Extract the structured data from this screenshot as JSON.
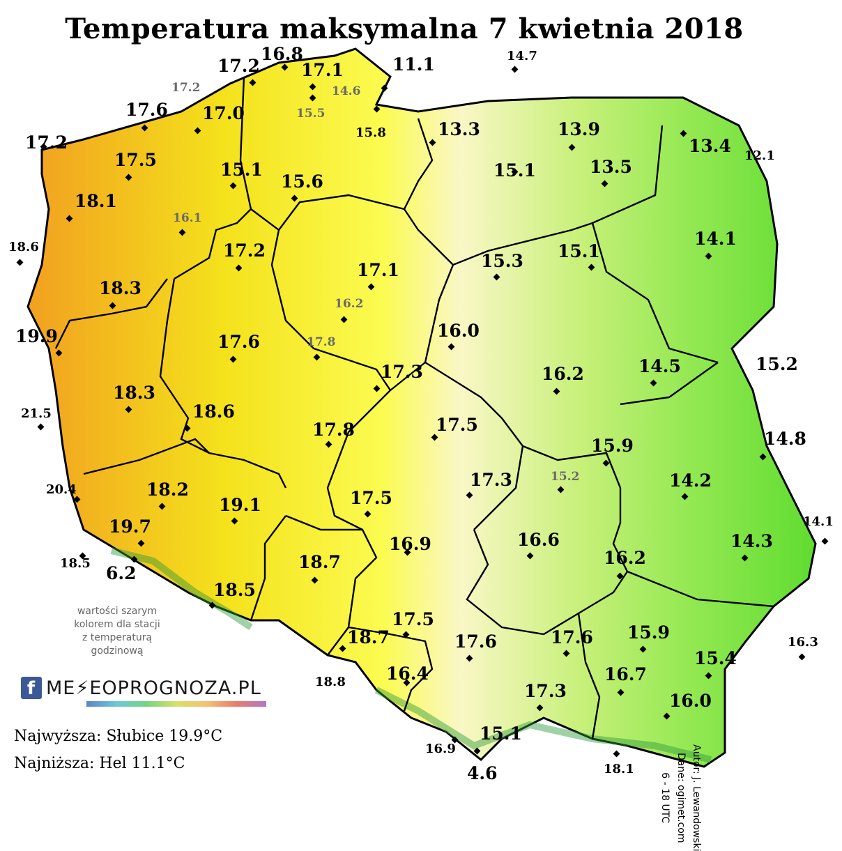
{
  "title": "Temperatura maksymalna 7 kwietnia 2018",
  "legend_note": [
    "wartości szarym",
    "kolorem dla stacji",
    "z temperaturą",
    "godzinową"
  ],
  "brand": {
    "fb": "f",
    "name": "METEOPROGNOZA.PL",
    "name_display_start": "ME",
    "name_display_end": "EOPROGNOZA.PL"
  },
  "extremes": {
    "highest": "Najwyższa: Słubice 19.9°C",
    "lowest": "Najniższa: Hel 11.1°C"
  },
  "credits": {
    "author": "Autor: J. Lewandowski",
    "data": "Dane: ogimet.com",
    "hours": "6 - 18 UTC"
  },
  "colors": {
    "warm": "#f0e01a",
    "yellow": "#ffff3a",
    "pale": "#f8f8c8",
    "green": "#9ee85a",
    "mountain": "#2f9a3a",
    "boundary": "#000000"
  },
  "stations": [
    {
      "value": "17.2",
      "style": "big"
    },
    {
      "value": "16.8",
      "style": "big"
    },
    {
      "value": "17.1",
      "style": "big"
    },
    {
      "value": "11.1",
      "style": "big"
    },
    {
      "value": "14.7",
      "style": "small"
    },
    {
      "value": "17.2",
      "style": "gray"
    },
    {
      "value": "17.0",
      "style": "big"
    },
    {
      "value": "14.6",
      "style": "gray"
    },
    {
      "value": "15.5",
      "style": "gray"
    },
    {
      "value": "15.8",
      "style": "small"
    },
    {
      "value": "17.6",
      "style": "big"
    },
    {
      "value": "13.3",
      "style": "big"
    },
    {
      "value": "13.9",
      "style": "big"
    },
    {
      "value": "13.4",
      "style": "big"
    },
    {
      "value": "17.2",
      "style": "big"
    },
    {
      "value": "17.5",
      "style": "big"
    },
    {
      "value": "15.1",
      "style": "big"
    },
    {
      "value": "15.1",
      "style": "big"
    },
    {
      "value": "13.5",
      "style": "big"
    },
    {
      "value": "12.1",
      "style": "small"
    },
    {
      "value": "15.6",
      "style": "big"
    },
    {
      "value": "18.1",
      "style": "big"
    },
    {
      "value": "16.1",
      "style": "gray"
    },
    {
      "value": "14.1",
      "style": "big"
    },
    {
      "value": "18.6",
      "style": "small"
    },
    {
      "value": "17.2",
      "style": "big"
    },
    {
      "value": "15.3",
      "style": "big"
    },
    {
      "value": "15.1",
      "style": "big"
    },
    {
      "value": "17.1",
      "style": "big"
    },
    {
      "value": "18.3",
      "style": "big"
    },
    {
      "value": "16.2",
      "style": "gray"
    },
    {
      "value": "16.0",
      "style": "big"
    },
    {
      "value": "19.9",
      "style": "big"
    },
    {
      "value": "17.6",
      "style": "big"
    },
    {
      "value": "17.8",
      "style": "gray"
    },
    {
      "value": "15.2",
      "style": "big"
    },
    {
      "value": "17.3",
      "style": "big"
    },
    {
      "value": "14.5",
      "style": "big"
    },
    {
      "value": "16.2",
      "style": "big"
    },
    {
      "value": "18.3",
      "style": "big"
    },
    {
      "value": "21.5",
      "style": "small"
    },
    {
      "value": "18.6",
      "style": "big"
    },
    {
      "value": "17.5",
      "style": "big"
    },
    {
      "value": "17.8",
      "style": "big"
    },
    {
      "value": "14.8",
      "style": "big"
    },
    {
      "value": "15.9",
      "style": "big"
    },
    {
      "value": "15.2",
      "style": "gray"
    },
    {
      "value": "17.3",
      "style": "big"
    },
    {
      "value": "14.2",
      "style": "big"
    },
    {
      "value": "20.4",
      "style": "small"
    },
    {
      "value": "18.2",
      "style": "big"
    },
    {
      "value": "19.1",
      "style": "big"
    },
    {
      "value": "17.5",
      "style": "big"
    },
    {
      "value": "19.7",
      "style": "big"
    },
    {
      "value": "16.9",
      "style": "big"
    },
    {
      "value": "16.6",
      "style": "big"
    },
    {
      "value": "14.1",
      "style": "small"
    },
    {
      "value": "14.3",
      "style": "big"
    },
    {
      "value": "18.5",
      "style": "small"
    },
    {
      "value": "6.2",
      "style": "big"
    },
    {
      "value": "18.7",
      "style": "big"
    },
    {
      "value": "16.2",
      "style": "big"
    },
    {
      "value": "18.5",
      "style": "big"
    },
    {
      "value": "17.5",
      "style": "big"
    },
    {
      "value": "15.9",
      "style": "big"
    },
    {
      "value": "18.7",
      "style": "big"
    },
    {
      "value": "17.6",
      "style": "big"
    },
    {
      "value": "17.6",
      "style": "big"
    },
    {
      "value": "16.3",
      "style": "small"
    },
    {
      "value": "15.4",
      "style": "big"
    },
    {
      "value": "16.4",
      "style": "big"
    },
    {
      "value": "18.8",
      "style": "small"
    },
    {
      "value": "16.7",
      "style": "big"
    },
    {
      "value": "17.3",
      "style": "big"
    },
    {
      "value": "16.0",
      "style": "big"
    },
    {
      "value": "15.1",
      "style": "big"
    },
    {
      "value": "16.9",
      "style": "small"
    },
    {
      "value": "18.1",
      "style": "small"
    },
    {
      "value": "4.6",
      "style": "big"
    }
  ]
}
